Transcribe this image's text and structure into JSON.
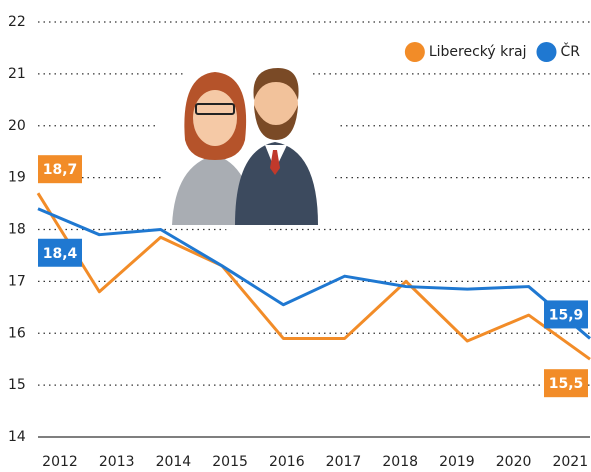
{
  "chart_data": {
    "type": "line",
    "categories": [
      "2012",
      "2013",
      "2014",
      "2015",
      "2016",
      "2017",
      "2018",
      "2019",
      "2020",
      "2021"
    ],
    "series": [
      {
        "name": "Liberecký kraj",
        "color": "#f28c28",
        "values": [
          18.7,
          16.8,
          17.85,
          17.3,
          15.9,
          15.9,
          17.0,
          15.85,
          16.35,
          15.5
        ],
        "value_labels": [
          "18,7",
          null,
          null,
          null,
          null,
          null,
          null,
          null,
          null,
          "15,5"
        ]
      },
      {
        "name": "ČR",
        "color": "#1f78d1",
        "values": [
          18.4,
          17.9,
          18.0,
          17.3,
          16.55,
          17.1,
          16.9,
          16.85,
          16.9,
          15.9
        ],
        "value_labels": [
          "18,4",
          null,
          null,
          null,
          null,
          null,
          null,
          null,
          null,
          "15,9"
        ]
      }
    ],
    "ylim": [
      14,
      22
    ],
    "yticks": [
      14,
      15,
      16,
      17,
      18,
      19,
      20,
      21,
      22
    ],
    "grid": true,
    "legend": "top-right"
  }
}
